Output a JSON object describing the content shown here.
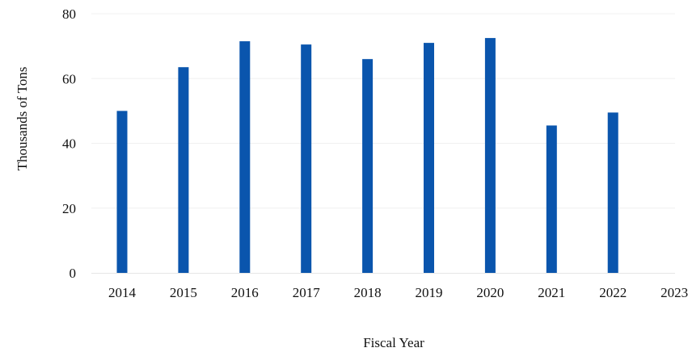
{
  "chart_data": {
    "type": "bar",
    "categories": [
      "2014",
      "2015",
      "2016",
      "2017",
      "2018",
      "2019",
      "2020",
      "2021",
      "2022",
      "2023"
    ],
    "values": [
      50,
      63.5,
      71.5,
      70.5,
      66,
      71,
      72.5,
      45.5,
      49.5,
      null
    ],
    "xlabel": "Fiscal Year",
    "ylabel": "Thousands of Tons",
    "ylim": [
      0,
      80
    ],
    "yticks": [
      0,
      20,
      40,
      60,
      80
    ],
    "grid": true,
    "bar_color": "#0a55ad"
  }
}
